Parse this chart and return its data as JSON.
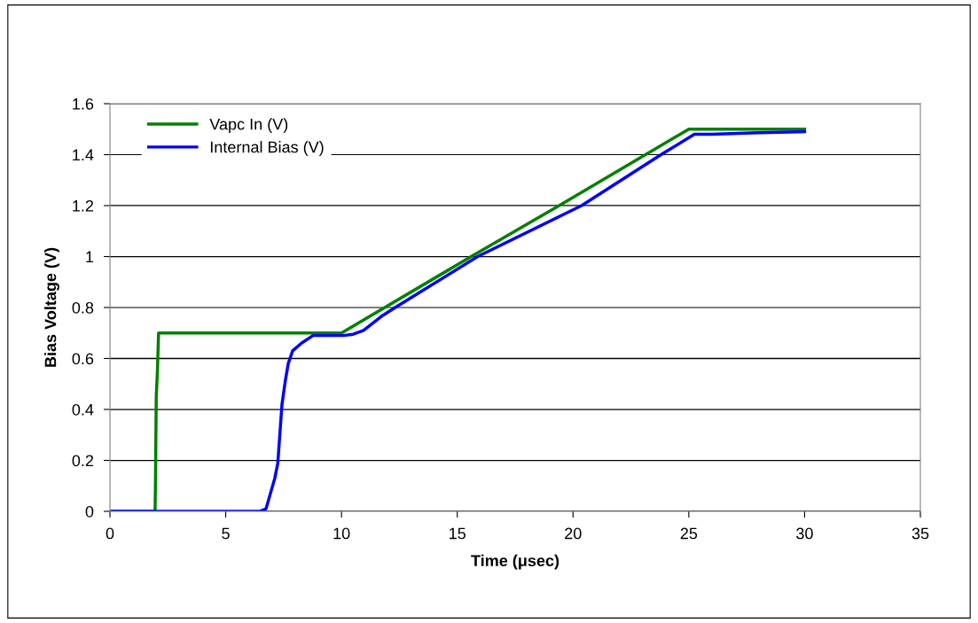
{
  "chart_data": {
    "type": "line",
    "xlabel": "Time (μsec)",
    "ylabel": "Bias Voltage (V)",
    "xlim": [
      0,
      35
    ],
    "xticks": [
      0,
      5,
      10,
      15,
      20,
      25,
      30,
      35
    ],
    "ylim": [
      0,
      1.6
    ],
    "yticks": [
      0,
      0.2,
      0.4,
      0.6,
      0.8,
      1,
      1.2,
      1.4,
      1.6
    ],
    "grid": "y",
    "legend": "top left",
    "line_style": "solid",
    "series": [
      {
        "name": "Vapc In (V)",
        "color": "#008000",
        "x": [
          0,
          1.95,
          1.97,
          2.0,
          2.05,
          2.1,
          10,
          15.6,
          19.4,
          25,
          30
        ],
        "values": [
          0,
          0,
          0.15,
          0.45,
          0.55,
          0.7,
          0.7,
          1.0,
          1.2,
          1.5,
          1.5
        ]
      },
      {
        "name": "Internal Bias (V)",
        "color": "#0000ff",
        "x": [
          0,
          6.47,
          6.74,
          6.93,
          7.12,
          7.25,
          7.32,
          7.43,
          7.57,
          7.7,
          7.89,
          8.27,
          8.77,
          9.15,
          10.07,
          10.5,
          10.95,
          11.72,
          12.32,
          15.88,
          20.37,
          23.8,
          25.24,
          26,
          27.7,
          30
        ],
        "values": [
          0,
          0,
          0.01,
          0.07,
          0.13,
          0.19,
          0.28,
          0.42,
          0.51,
          0.58,
          0.63,
          0.66,
          0.69,
          0.69,
          0.69,
          0.695,
          0.71,
          0.765,
          0.8,
          1.0,
          1.2,
          1.4,
          1.48,
          1.48,
          1.485,
          1.49
        ]
      }
    ]
  }
}
